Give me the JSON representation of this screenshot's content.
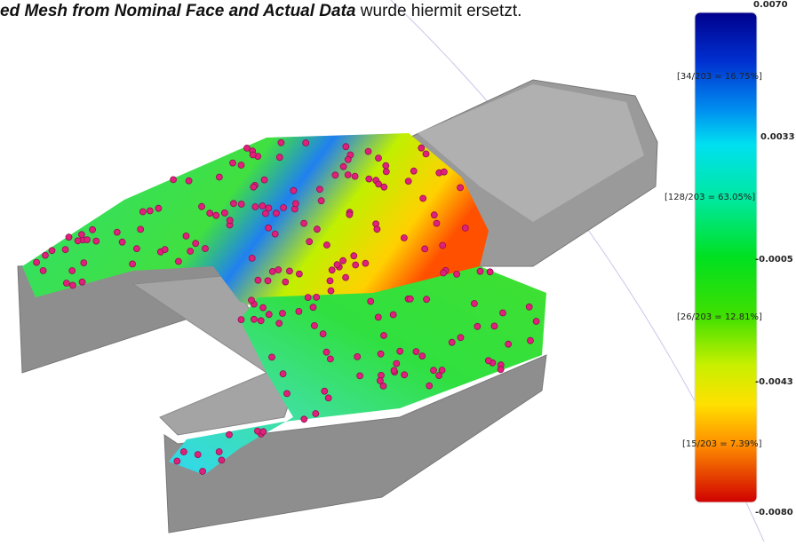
{
  "caption": {
    "emphasis": "ed Mesh from Nominal Face and Actual Data",
    "text": "wurde hiermit ersetzt."
  },
  "legend": {
    "ticks": [
      "0.0070",
      "0.0033",
      "-0.0005",
      "-0.0043",
      "-0.0080"
    ],
    "bands": [
      "[34/203 = 16.75%]",
      "[128/203 = 63.05%]",
      "[26/203 = 12.81%]",
      "[15/203 = 7.39%]"
    ]
  }
}
